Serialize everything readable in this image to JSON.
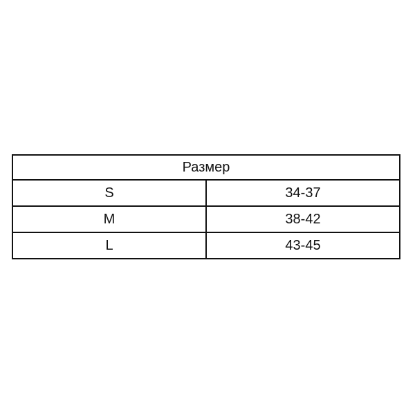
{
  "table": {
    "header": "Размер",
    "rows": [
      {
        "size": "S",
        "range": "34-37"
      },
      {
        "size": "M",
        "range": "38-42"
      },
      {
        "size": "L",
        "range": "43-45"
      }
    ]
  }
}
